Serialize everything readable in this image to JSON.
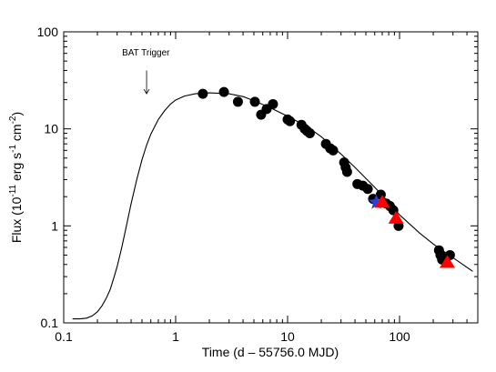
{
  "chart_data": {
    "type": "scatter",
    "xlabel": "Time (d – 55756.0 MJD)",
    "ylabel_parts": [
      "Flux (10",
      "-11",
      " erg s",
      "-1",
      " cm",
      "-2",
      ")"
    ],
    "xscale": "log",
    "yscale": "log",
    "xlim": [
      0.1,
      500
    ],
    "ylim": [
      0.1,
      100
    ],
    "xticks": [
      {
        "value": 0.1,
        "label": "0.1"
      },
      {
        "value": 1,
        "label": "1"
      },
      {
        "value": 10,
        "label": "10"
      },
      {
        "value": 100,
        "label": "100"
      }
    ],
    "yticks": [
      {
        "value": 0.1,
        "label": "0.1"
      },
      {
        "value": 1,
        "label": "1"
      },
      {
        "value": 10,
        "label": "10"
      },
      {
        "value": 100,
        "label": "100"
      }
    ],
    "annotation": {
      "text": "BAT Trigger",
      "x": 0.55,
      "y_text": 50,
      "y_arrow_top": 40,
      "y_arrow_bottom": 23
    },
    "series": [
      {
        "marker": "circle",
        "color": "#000000",
        "x": [
          1.75,
          2.7,
          3.6,
          5.1,
          5.8,
          6.5,
          7.4,
          10.0,
          10.5,
          13.3,
          14.2,
          14.9,
          15.8,
          22.0,
          24.0,
          25.5,
          32.0,
          33.0,
          34.0,
          42.0,
          47.0,
          52.0,
          58.0,
          68.0,
          76.0,
          82.0,
          88.0,
          98.0,
          225.0,
          232.0,
          240.0,
          282.0
        ],
        "y": [
          23,
          24,
          19,
          19,
          14,
          16,
          18,
          12.5,
          12,
          11,
          10,
          9.5,
          9,
          7,
          6.3,
          6,
          4.5,
          4,
          3.6,
          2.7,
          2.6,
          2.4,
          1.9,
          2.1,
          1.7,
          1.6,
          1.45,
          1.0,
          0.56,
          0.5,
          0.45,
          0.5
        ]
      },
      {
        "marker": "star",
        "color": "#2a3fd8",
        "x": [
          62
        ],
        "y": [
          1.75
        ]
      },
      {
        "marker": "triangle",
        "color": "#ff0000",
        "x": [
          70,
          93,
          267
        ],
        "y": [
          1.75,
          1.2,
          0.42
        ]
      }
    ],
    "model_curve": {
      "color": "#000000",
      "x": [
        0.12,
        0.14,
        0.16,
        0.18,
        0.2,
        0.22,
        0.24,
        0.26,
        0.28,
        0.3,
        0.33,
        0.36,
        0.4,
        0.45,
        0.5,
        0.55,
        0.6,
        0.7,
        0.8,
        0.9,
        1.0,
        1.2,
        1.5,
        2.0,
        3.0,
        4.0,
        5.0,
        7.0,
        10.0,
        15.0,
        20.0,
        30.0,
        40.0,
        60.0,
        80.0,
        100.0,
        150.0,
        200.0,
        300.0,
        450.0
      ],
      "y": [
        0.11,
        0.11,
        0.112,
        0.118,
        0.13,
        0.15,
        0.18,
        0.22,
        0.29,
        0.38,
        0.6,
        0.95,
        1.7,
        3.0,
        4.8,
        6.8,
        8.8,
        12.5,
        15.5,
        18.0,
        19.8,
        21.8,
        23.0,
        23.5,
        23.0,
        21.5,
        19.5,
        16.5,
        13.5,
        10.5,
        8.3,
        5.5,
        4.0,
        2.5,
        1.75,
        1.3,
        0.85,
        0.65,
        0.47,
        0.34
      ]
    }
  }
}
